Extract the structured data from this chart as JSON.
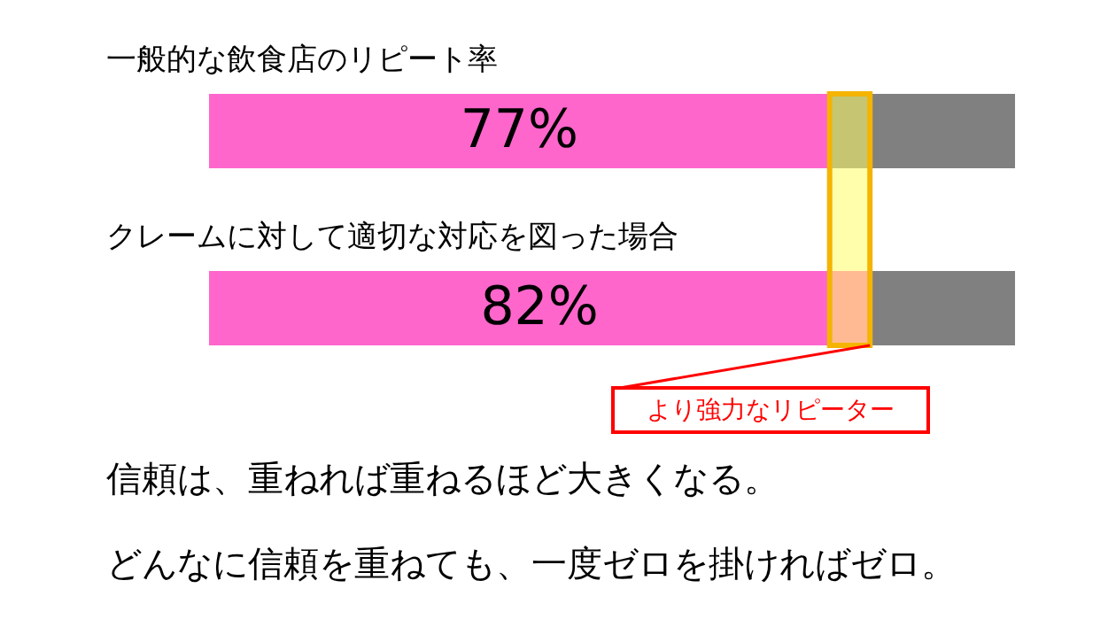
{
  "chart_data": {
    "type": "bar",
    "orientation": "horizontal",
    "stacked": true,
    "categories": [
      "一般的な飲食店のリピート率",
      "クレームに対して適切な対応を図った場合"
    ],
    "series": [
      {
        "color": "#ff66cc",
        "values": [
          77,
          82
        ],
        "value_labels": [
          "77%",
          "82%"
        ]
      },
      {
        "color": "#808080",
        "values": [
          23,
          18
        ]
      }
    ],
    "xlim": [
      0,
      100
    ],
    "bands": [
      {
        "axis": "x",
        "from": 77,
        "to": 82,
        "label": "より強力なリピーター",
        "color": "#ffff66"
      }
    ],
    "annotations": [
      "信頼は、重ねれば重ねるほど大きくなる。",
      "どんなに信頼を重ねても、一度ゼロを掛ければゼロ。"
    ]
  }
}
